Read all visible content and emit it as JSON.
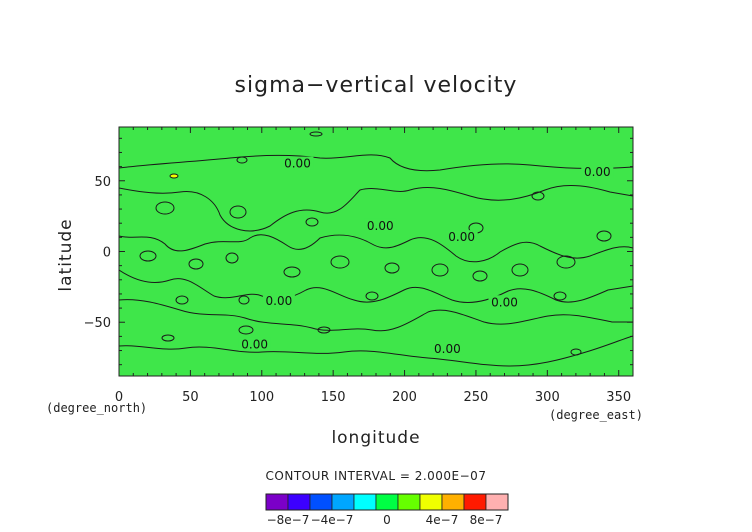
{
  "chart_data": {
    "type": "heatmap",
    "title": "sigma−vertical velocity",
    "xlabel": "longitude",
    "ylabel": "latitude",
    "x_unit": "(degree_east)",
    "y_unit": "(degree_north)",
    "xlim": [
      0,
      360
    ],
    "ylim": [
      -88,
      88
    ],
    "x_ticks": [
      "0",
      "50",
      "100",
      "150",
      "200",
      "250",
      "300",
      "350"
    ],
    "y_ticks": [
      "−50",
      "0",
      "50"
    ],
    "contour_interval_text": "CONTOUR INTERVAL = 2.000E−07",
    "contour_labels": [
      {
        "text": "0.00",
        "lon": 125,
        "lat": 60
      },
      {
        "text": "0.00",
        "lon": 335,
        "lat": 54
      },
      {
        "text": "0.00",
        "lon": 183,
        "lat": 16
      },
      {
        "text": "0.00",
        "lon": 240,
        "lat": 8
      },
      {
        "text": "0.00",
        "lon": 112,
        "lat": -37
      },
      {
        "text": "0.00",
        "lon": 270,
        "lat": -38
      },
      {
        "text": "0.00",
        "lon": 95,
        "lat": -68
      },
      {
        "text": "0.00",
        "lon": 230,
        "lat": -71
      }
    ],
    "colorbar": {
      "levels": [
        -1e-06,
        -8e-07,
        -6e-07,
        -4e-07,
        -2e-07,
        0,
        2e-07,
        4e-07,
        6e-07,
        8e-07,
        1e-06
      ],
      "colors": [
        "#7b00c8",
        "#3c00ff",
        "#0050ff",
        "#00a6ff",
        "#00ffff",
        "#00ff44",
        "#66ff00",
        "#f0ff00",
        "#ffb000",
        "#ff1a00",
        "#ffb0b0"
      ],
      "labels": [
        "−8e−7",
        "−4e−7",
        "0",
        "4e−7",
        "8e−7"
      ]
    },
    "field_color": "#3fe64a",
    "grid": false
  }
}
